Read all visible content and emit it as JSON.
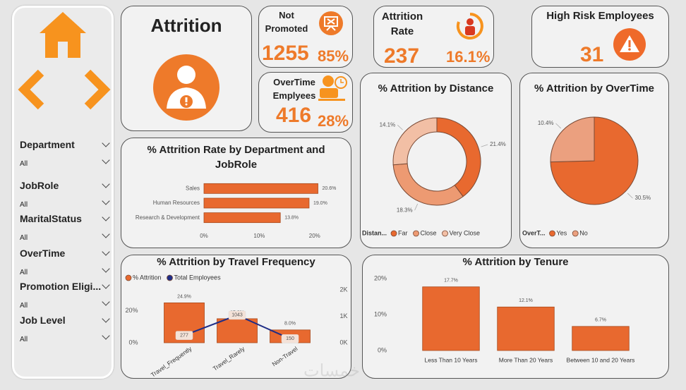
{
  "sidebar": {
    "slicers": [
      {
        "label": "Department",
        "value": "All"
      },
      {
        "label": "JobRole",
        "value": "All"
      },
      {
        "label": "MaritalStatus",
        "value": "All"
      },
      {
        "label": "OverTime",
        "value": "All"
      },
      {
        "label": "Promotion Eligi...",
        "value": "All"
      },
      {
        "label": "Job Level",
        "value": "All"
      }
    ]
  },
  "cards": {
    "attrition": {
      "title": "Attrition"
    },
    "not_promoted": {
      "label": "Not Promoted",
      "count": 1255,
      "percent": "85%"
    },
    "overtime": {
      "label": "OverTime Emplyees",
      "count": 416,
      "percent": "28%"
    },
    "attrition_rate": {
      "label": "Attrition Rate",
      "count": 237,
      "percent": "16.1%"
    },
    "high_risk": {
      "label": "High Risk Employees",
      "count": 31
    }
  },
  "watermark": "خمسات",
  "chart_data": [
    {
      "type": "bar",
      "orientation": "horizontal",
      "title": "% Attrition Rate by Department and JobRole",
      "categories": [
        "Sales",
        "Human Resources",
        "Research & Development"
      ],
      "values": [
        20.6,
        19.0,
        13.8
      ],
      "value_labels": [
        "20.6%",
        "19.0%",
        "13.8%"
      ],
      "color": "#e8692f",
      "xlim": [
        0,
        25
      ],
      "xticks": [
        {
          "value": 0,
          "label": "0%"
        },
        {
          "value": 10,
          "label": "10%"
        },
        {
          "value": 20,
          "label": "20%"
        }
      ]
    },
    {
      "type": "donut",
      "title": "% Attrition by Distance",
      "legend_title": "Distan...",
      "categories": [
        "Far",
        "Close",
        "Very Close"
      ],
      "values": [
        21.4,
        18.3,
        14.1
      ],
      "value_labels": [
        "21.4%",
        "18.3%",
        "14.1%"
      ],
      "colors": [
        "#e8692f",
        "#ed9a72",
        "#f2bfa5"
      ]
    },
    {
      "type": "pie",
      "title": "% Attrition by OverTime",
      "legend_title": "OverT...",
      "categories": [
        "Yes",
        "No"
      ],
      "values": [
        30.5,
        10.4
      ],
      "value_labels": [
        "30.5%",
        "10.4%"
      ],
      "colors": [
        "#e8692f",
        "#eba07f"
      ]
    },
    {
      "type": "combo",
      "title": "% Attrition by Travel Frequency",
      "categories": [
        "Travel_Frequently",
        "Travel_Rarely",
        "Non-Travel"
      ],
      "series": [
        {
          "name": "% Attrition",
          "color": "#e8692f",
          "values": [
            24.9,
            15.0,
            8.0
          ],
          "value_labels": [
            "24.9%",
            "15.0%",
            "8.0%"
          ]
        },
        {
          "name": "Total Employees",
          "color": "#1f2d86",
          "values": [
            277,
            1043,
            150
          ],
          "axis": "y2"
        }
      ],
      "ylim": [
        0,
        33
      ],
      "yticks": [
        {
          "value": 0,
          "label": "0%"
        },
        {
          "value": 20,
          "label": "20%"
        }
      ],
      "y2lim": [
        0,
        2000
      ],
      "y2ticks": [
        {
          "value": 0,
          "label": "0K"
        },
        {
          "value": 1000,
          "label": "1K"
        },
        {
          "value": 2000,
          "label": "2K"
        }
      ]
    },
    {
      "type": "bar",
      "orientation": "vertical",
      "title": "% Attrition by Tenure",
      "categories": [
        "Less Than 10 Years",
        "More Than 20 Years",
        "Between 10 and 20 Years"
      ],
      "values": [
        17.7,
        12.1,
        6.7
      ],
      "value_labels": [
        "17.7%",
        "12.1%",
        "6.7%"
      ],
      "color": "#e8692f",
      "ylim": [
        0,
        20
      ],
      "yticks": [
        {
          "value": 0,
          "label": "0%"
        },
        {
          "value": 10,
          "label": "10%"
        },
        {
          "value": 20,
          "label": "20%"
        }
      ]
    }
  ]
}
